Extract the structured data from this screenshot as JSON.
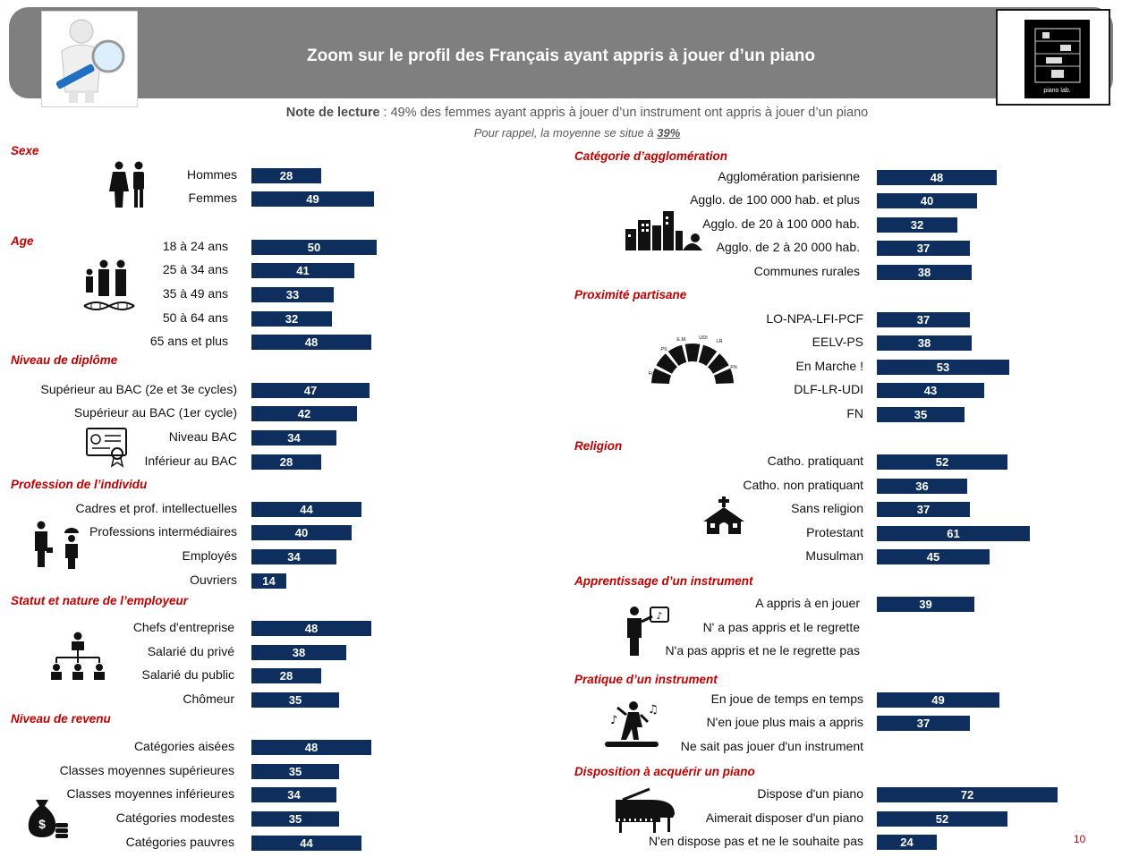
{
  "header": {
    "title": "Zoom sur le profil des Français ayant appris à jouer d’un piano",
    "logo_text": "piano lab."
  },
  "note": {
    "label": "Note de lecture",
    "text": " : 49% des femmes ayant appris à jouer d’un instrument ont appris à jouer d’un piano"
  },
  "reminder": {
    "text": "Pour rappel, la moyenne se situe à ",
    "value": "39%"
  },
  "page_number": "10",
  "colors": {
    "bar": "#0e2f5e",
    "section_title": "#c00000",
    "header": "#7f7f7f"
  },
  "chart_data": [
    {
      "type": "bar",
      "orientation": "horizontal",
      "title": "Sexe",
      "icon": "couple-icon",
      "categories": [
        "Hommes",
        "Femmes"
      ],
      "values": [
        28,
        49
      ]
    },
    {
      "type": "bar",
      "orientation": "horizontal",
      "title": "Age",
      "icon": "family-dna-icon",
      "categories": [
        "18 à 24 ans",
        "25 à 34 ans",
        "35 à 49 ans",
        "50 à 64 ans",
        "65 ans et plus"
      ],
      "values": [
        50,
        41,
        33,
        32,
        48
      ]
    },
    {
      "type": "bar",
      "orientation": "horizontal",
      "title": "Niveau de diplôme",
      "icon": "diploma-icon",
      "categories": [
        "Supérieur  au BAC (2e et 3e cycles)",
        "Supérieur  au BAC (1er cycle)",
        "Niveau BAC",
        "Inférieur au BAC"
      ],
      "values": [
        47,
        42,
        34,
        28
      ]
    },
    {
      "type": "bar",
      "orientation": "horizontal",
      "title": "Profession de l’individu",
      "icon": "workers-icon",
      "categories": [
        "Cadres et prof. intellectuelles",
        "Professions intermédiaires",
        "Employés",
        "Ouvriers"
      ],
      "values": [
        44,
        40,
        34,
        14
      ]
    },
    {
      "type": "bar",
      "orientation": "horizontal",
      "title": "Statut et nature de l’employeur",
      "icon": "org-chart-icon",
      "categories": [
        "Chefs d'entreprise",
        "Salarié du privé",
        "Salarié du public",
        "Chômeur"
      ],
      "values": [
        48,
        38,
        28,
        35
      ]
    },
    {
      "type": "bar",
      "orientation": "horizontal",
      "title": "Niveau de revenu",
      "icon": "money-bag-icon",
      "categories": [
        "Catégories aisées",
        "Classes moyennes supérieures",
        "Classes moyennes inférieures",
        "Catégories modestes",
        "Catégories pauvres"
      ],
      "values": [
        48,
        35,
        34,
        35,
        44
      ]
    },
    {
      "type": "bar",
      "orientation": "horizontal",
      "title": "Catégorie d’agglomération",
      "icon": "city-icon",
      "categories": [
        "Agglomération parisienne",
        "Agglo. de 100 000 hab. et plus",
        "Agglo. de 20 à 100 000 hab.",
        "Agglo. de 2 à 20 000 hab.",
        "Communes rurales"
      ],
      "values": [
        48,
        40,
        32,
        37,
        38
      ]
    },
    {
      "type": "bar",
      "orientation": "horizontal",
      "title": "Proximité partisane",
      "icon": "hemicycle-icon",
      "icon_labels": [
        "E.M.",
        "UDI",
        "LR",
        "PS",
        "FdG",
        "FN"
      ],
      "categories": [
        "LO-NPA-LFI-PCF",
        "EELV-PS",
        "En Marche !",
        "DLF-LR-UDI",
        "FN"
      ],
      "values": [
        37,
        38,
        53,
        43,
        35
      ]
    },
    {
      "type": "bar",
      "orientation": "horizontal",
      "title": "Religion",
      "icon": "church-icon",
      "categories": [
        "Catho. pratiquant",
        "Catho. non pratiquant",
        "Sans religion",
        "Protestant",
        "Musulman"
      ],
      "values": [
        52,
        36,
        37,
        61,
        45
      ]
    },
    {
      "type": "bar",
      "orientation": "horizontal",
      "title": "Apprentissage d’un instrument",
      "icon": "teacher-icon",
      "categories": [
        "A appris à en jouer",
        "N' a pas appris et le regrette",
        "N'a pas appris et ne le regrette pas"
      ],
      "values": [
        39,
        null,
        null
      ]
    },
    {
      "type": "bar",
      "orientation": "horizontal",
      "title": "Pratique d’un instrument",
      "icon": "dancer-icon",
      "categories": [
        "En joue de temps en temps",
        "N'en joue plus  mais a appris",
        "Ne sait pas jouer d'un instrument"
      ],
      "values": [
        49,
        37,
        null
      ]
    },
    {
      "type": "bar",
      "orientation": "horizontal",
      "title": "Disposition à acquérir un piano",
      "icon": "grand-piano-icon",
      "categories": [
        "Dispose d'un piano",
        "Aimerait disposer d'un piano",
        "N'en  dispose pas et ne le souhaite pas"
      ],
      "values": [
        72,
        52,
        24
      ]
    }
  ]
}
